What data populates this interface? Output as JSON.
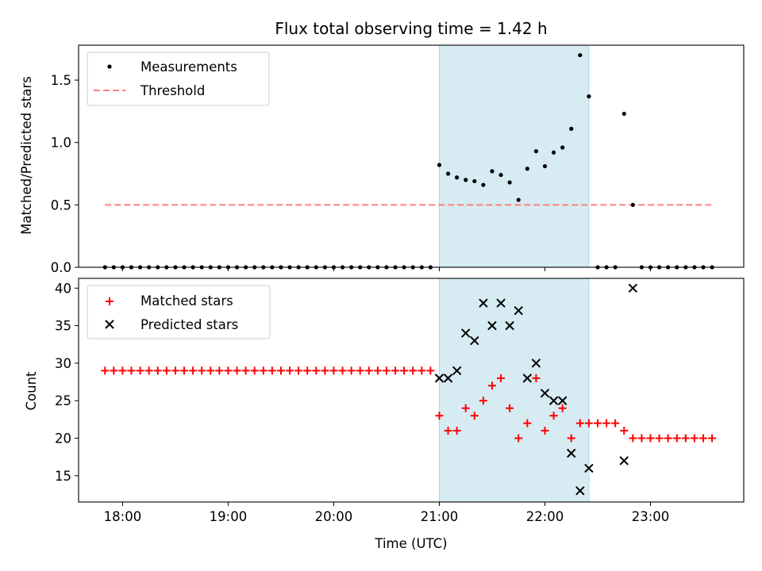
{
  "chart_data": [
    {
      "type": "scatter",
      "title": "Flux total observing time = 1.42 h",
      "xlabel": "",
      "ylabel": "Matched/Predicted stars",
      "xlim": [
        "17:35",
        "23:53"
      ],
      "ylim": [
        0,
        1.78
      ],
      "yticks": [
        "0.0",
        "0.5",
        "1.0",
        "1.5"
      ],
      "x_tick_values": [
        "18:00",
        "19:00",
        "20:00",
        "21:00",
        "22:00",
        "23:00"
      ],
      "shaded_span": [
        "21:00",
        "22:25"
      ],
      "legend_position": "top-left",
      "colors": {
        "measurements": "#000000",
        "threshold": "#ff7f7f",
        "span": "#add8e6"
      },
      "series": [
        {
          "name": "Measurements",
          "marker": "dot",
          "points": [
            [
              "17:50",
              0
            ],
            [
              "17:55",
              0
            ],
            [
              "18:00",
              0
            ],
            [
              "18:05",
              0
            ],
            [
              "18:10",
              0
            ],
            [
              "18:15",
              0
            ],
            [
              "18:20",
              0
            ],
            [
              "18:25",
              0
            ],
            [
              "18:30",
              0
            ],
            [
              "18:35",
              0
            ],
            [
              "18:40",
              0
            ],
            [
              "18:45",
              0
            ],
            [
              "18:50",
              0
            ],
            [
              "18:55",
              0
            ],
            [
              "19:00",
              0
            ],
            [
              "19:05",
              0
            ],
            [
              "19:10",
              0
            ],
            [
              "19:15",
              0
            ],
            [
              "19:20",
              0
            ],
            [
              "19:25",
              0
            ],
            [
              "19:30",
              0
            ],
            [
              "19:35",
              0
            ],
            [
              "19:40",
              0
            ],
            [
              "19:45",
              0
            ],
            [
              "19:50",
              0
            ],
            [
              "19:55",
              0
            ],
            [
              "20:00",
              0
            ],
            [
              "20:05",
              0
            ],
            [
              "20:10",
              0
            ],
            [
              "20:15",
              0
            ],
            [
              "20:20",
              0
            ],
            [
              "20:25",
              0
            ],
            [
              "20:30",
              0
            ],
            [
              "20:35",
              0
            ],
            [
              "20:40",
              0
            ],
            [
              "20:45",
              0
            ],
            [
              "20:50",
              0
            ],
            [
              "20:55",
              0
            ],
            [
              "21:00",
              0.82
            ],
            [
              "21:05",
              0.75
            ],
            [
              "21:10",
              0.72
            ],
            [
              "21:15",
              0.7
            ],
            [
              "21:20",
              0.69
            ],
            [
              "21:25",
              0.66
            ],
            [
              "21:30",
              0.77
            ],
            [
              "21:35",
              0.74
            ],
            [
              "21:40",
              0.68
            ],
            [
              "21:45",
              0.54
            ],
            [
              "21:50",
              0.79
            ],
            [
              "21:55",
              0.93
            ],
            [
              "22:00",
              0.81
            ],
            [
              "22:05",
              0.92
            ],
            [
              "22:10",
              0.96
            ],
            [
              "22:15",
              1.11
            ],
            [
              "22:20",
              1.7
            ],
            [
              "22:25",
              1.37
            ],
            [
              "22:30",
              0
            ],
            [
              "22:35",
              0
            ],
            [
              "22:40",
              0
            ],
            [
              "22:45",
              1.23
            ],
            [
              "22:50",
              0.5
            ],
            [
              "22:55",
              0
            ],
            [
              "23:00",
              0
            ],
            [
              "23:05",
              0
            ],
            [
              "23:10",
              0
            ],
            [
              "23:15",
              0
            ],
            [
              "23:20",
              0
            ],
            [
              "23:25",
              0
            ],
            [
              "23:30",
              0
            ],
            [
              "23:35",
              0
            ]
          ]
        },
        {
          "name": "Threshold",
          "style": "dashed",
          "points": [
            [
              "17:50",
              0.5
            ],
            [
              "23:35",
              0.5
            ]
          ]
        }
      ]
    },
    {
      "type": "scatter",
      "title": "",
      "xlabel": "Time (UTC)",
      "ylabel": "Count",
      "xlim": [
        "17:35",
        "23:53"
      ],
      "ylim": [
        11.5,
        41.3
      ],
      "yticks": [
        "15",
        "20",
        "25",
        "30",
        "35",
        "40"
      ],
      "xticks": [
        "18:00",
        "19:00",
        "20:00",
        "21:00",
        "22:00",
        "23:00"
      ],
      "shaded_span": [
        "21:00",
        "22:25"
      ],
      "legend_position": "top-left",
      "colors": {
        "matched": "#ff0000",
        "predicted": "#000000",
        "span": "#add8e6"
      },
      "series": [
        {
          "name": "Matched stars",
          "marker": "plus",
          "points": [
            [
              "17:50",
              29
            ],
            [
              "17:55",
              29
            ],
            [
              "18:00",
              29
            ],
            [
              "18:05",
              29
            ],
            [
              "18:10",
              29
            ],
            [
              "18:15",
              29
            ],
            [
              "18:20",
              29
            ],
            [
              "18:25",
              29
            ],
            [
              "18:30",
              29
            ],
            [
              "18:35",
              29
            ],
            [
              "18:40",
              29
            ],
            [
              "18:45",
              29
            ],
            [
              "18:50",
              29
            ],
            [
              "18:55",
              29
            ],
            [
              "19:00",
              29
            ],
            [
              "19:05",
              29
            ],
            [
              "19:10",
              29
            ],
            [
              "19:15",
              29
            ],
            [
              "19:20",
              29
            ],
            [
              "19:25",
              29
            ],
            [
              "19:30",
              29
            ],
            [
              "19:35",
              29
            ],
            [
              "19:40",
              29
            ],
            [
              "19:45",
              29
            ],
            [
              "19:50",
              29
            ],
            [
              "19:55",
              29
            ],
            [
              "20:00",
              29
            ],
            [
              "20:05",
              29
            ],
            [
              "20:10",
              29
            ],
            [
              "20:15",
              29
            ],
            [
              "20:20",
              29
            ],
            [
              "20:25",
              29
            ],
            [
              "20:30",
              29
            ],
            [
              "20:35",
              29
            ],
            [
              "20:40",
              29
            ],
            [
              "20:45",
              29
            ],
            [
              "20:50",
              29
            ],
            [
              "20:55",
              29
            ],
            [
              "21:00",
              23
            ],
            [
              "21:05",
              21
            ],
            [
              "21:10",
              21
            ],
            [
              "21:15",
              24
            ],
            [
              "21:20",
              23
            ],
            [
              "21:25",
              25
            ],
            [
              "21:30",
              27
            ],
            [
              "21:35",
              28
            ],
            [
              "21:40",
              24
            ],
            [
              "21:45",
              20
            ],
            [
              "21:50",
              22
            ],
            [
              "21:55",
              28
            ],
            [
              "22:00",
              21
            ],
            [
              "22:05",
              23
            ],
            [
              "22:10",
              24
            ],
            [
              "22:15",
              20
            ],
            [
              "22:20",
              22
            ],
            [
              "22:25",
              22
            ],
            [
              "22:30",
              22
            ],
            [
              "22:35",
              22
            ],
            [
              "22:40",
              22
            ],
            [
              "22:45",
              21
            ],
            [
              "22:50",
              20
            ],
            [
              "22:55",
              20
            ],
            [
              "23:00",
              20
            ],
            [
              "23:05",
              20
            ],
            [
              "23:10",
              20
            ],
            [
              "23:15",
              20
            ],
            [
              "23:20",
              20
            ],
            [
              "23:25",
              20
            ],
            [
              "23:30",
              20
            ],
            [
              "23:35",
              20
            ]
          ]
        },
        {
          "name": "Predicted stars",
          "marker": "x",
          "points": [
            [
              "21:00",
              28
            ],
            [
              "21:05",
              28
            ],
            [
              "21:10",
              29
            ],
            [
              "21:15",
              34
            ],
            [
              "21:20",
              33
            ],
            [
              "21:25",
              38
            ],
            [
              "21:30",
              35
            ],
            [
              "21:35",
              38
            ],
            [
              "21:40",
              35
            ],
            [
              "21:45",
              37
            ],
            [
              "21:50",
              28
            ],
            [
              "21:55",
              30
            ],
            [
              "22:00",
              26
            ],
            [
              "22:05",
              25
            ],
            [
              "22:10",
              25
            ],
            [
              "22:15",
              18
            ],
            [
              "22:20",
              13
            ],
            [
              "22:25",
              16
            ],
            [
              "22:45",
              17
            ],
            [
              "22:50",
              40
            ]
          ]
        }
      ]
    }
  ]
}
